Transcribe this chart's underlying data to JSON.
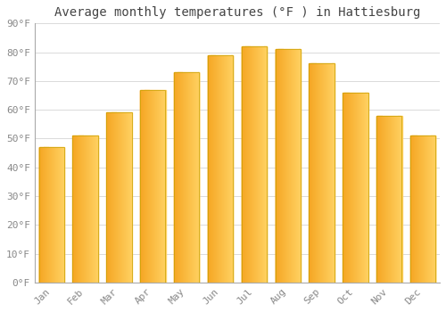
{
  "title": "Average monthly temperatures (°F ) in Hattiesburg",
  "months": [
    "Jan",
    "Feb",
    "Mar",
    "Apr",
    "May",
    "Jun",
    "Jul",
    "Aug",
    "Sep",
    "Oct",
    "Nov",
    "Dec"
  ],
  "values": [
    47,
    51,
    59,
    67,
    73,
    79,
    82,
    81,
    76,
    66,
    58,
    51
  ],
  "bar_color_dark": "#F5A623",
  "bar_color_light": "#FFD060",
  "bar_border_color": "#C8A000",
  "ylim": [
    0,
    90
  ],
  "yticks": [
    0,
    10,
    20,
    30,
    40,
    50,
    60,
    70,
    80,
    90
  ],
  "ytick_labels": [
    "0°F",
    "10°F",
    "20°F",
    "30°F",
    "40°F",
    "50°F",
    "60°F",
    "70°F",
    "80°F",
    "90°F"
  ],
  "bg_color": "#FFFFFF",
  "grid_color": "#CCCCCC",
  "title_fontsize": 10,
  "tick_fontsize": 8,
  "tick_color": "#888888",
  "title_color": "#444444",
  "bar_width": 0.75,
  "gradient_steps": 100
}
